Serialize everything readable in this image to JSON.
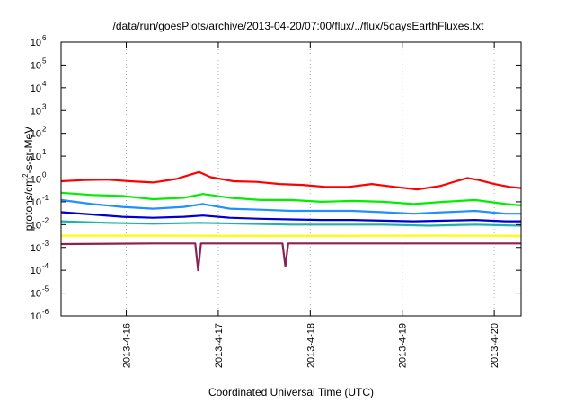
{
  "chart_data": {
    "type": "line",
    "title": "/data/run/goesPlots/archive/2013-04-20/07:00/flux/../flux/5daysEarthFluxes.txt",
    "xlabel": "Coordinated Universal Time (UTC)",
    "ylabel": {
      "base": "protons/cm",
      "sup": "2",
      "rest": "-s-sr-MeV"
    },
    "yscale": "log",
    "ylim": [
      1e-06,
      1000000.0
    ],
    "y_ticks": [
      {
        "value": 1e-06,
        "base": "10",
        "exp": "-6"
      },
      {
        "value": 1e-05,
        "base": "10",
        "exp": "-5"
      },
      {
        "value": 0.0001,
        "base": "10",
        "exp": "-4"
      },
      {
        "value": 0.001,
        "base": "10",
        "exp": "-3"
      },
      {
        "value": 0.01,
        "base": "10",
        "exp": "-2"
      },
      {
        "value": 0.1,
        "base": "10",
        "exp": "-1"
      },
      {
        "value": 1,
        "base": "10",
        "exp": "0"
      },
      {
        "value": 10,
        "base": "10",
        "exp": "1"
      },
      {
        "value": 100,
        "base": "10",
        "exp": "2"
      },
      {
        "value": 1000,
        "base": "10",
        "exp": "3"
      },
      {
        "value": 10000,
        "base": "10",
        "exp": "4"
      },
      {
        "value": 100000,
        "base": "10",
        "exp": "5"
      },
      {
        "value": 1000000,
        "base": "10",
        "exp": "6"
      }
    ],
    "xlim": [
      "2013-04-15 07:00",
      "2013-04-20 07:00"
    ],
    "x_ticks": [
      {
        "value": "2013-04-16 00:00",
        "label": "2013-4-16"
      },
      {
        "value": "2013-04-17 00:00",
        "label": "2013-4-17"
      },
      {
        "value": "2013-04-18 00:00",
        "label": "2013-4-18"
      },
      {
        "value": "2013-04-19 00:00",
        "label": "2013-4-19"
      },
      {
        "value": "2013-04-20 00:00",
        "label": "2013-4-20"
      }
    ],
    "grid": true,
    "series": [
      {
        "color": "#ff0000",
        "values": [
          {
            "x": "2013-04-15 07:00",
            "y": 0.8
          },
          {
            "x": "2013-04-15 13:00",
            "y": 0.9
          },
          {
            "x": "2013-04-15 19:00",
            "y": 0.95
          },
          {
            "x": "2013-04-16 01:00",
            "y": 0.8
          },
          {
            "x": "2013-04-16 07:00",
            "y": 0.7
          },
          {
            "x": "2013-04-16 13:00",
            "y": 1.0
          },
          {
            "x": "2013-04-16 17:00",
            "y": 1.6
          },
          {
            "x": "2013-04-16 19:00",
            "y": 2.0
          },
          {
            "x": "2013-04-16 22:00",
            "y": 1.2
          },
          {
            "x": "2013-04-17 04:00",
            "y": 0.8
          },
          {
            "x": "2013-04-17 10:00",
            "y": 0.75
          },
          {
            "x": "2013-04-17 16:00",
            "y": 0.6
          },
          {
            "x": "2013-04-17 22:00",
            "y": 0.55
          },
          {
            "x": "2013-04-18 04:00",
            "y": 0.45
          },
          {
            "x": "2013-04-18 10:00",
            "y": 0.45
          },
          {
            "x": "2013-04-18 16:00",
            "y": 0.6
          },
          {
            "x": "2013-04-18 22:00",
            "y": 0.45
          },
          {
            "x": "2013-04-19 04:00",
            "y": 0.35
          },
          {
            "x": "2013-04-19 10:00",
            "y": 0.5
          },
          {
            "x": "2013-04-19 14:00",
            "y": 0.8
          },
          {
            "x": "2013-04-19 17:00",
            "y": 1.1
          },
          {
            "x": "2013-04-19 20:00",
            "y": 0.9
          },
          {
            "x": "2013-04-20 00:00",
            "y": 0.6
          },
          {
            "x": "2013-04-20 04:00",
            "y": 0.45
          },
          {
            "x": "2013-04-20 07:00",
            "y": 0.4
          }
        ]
      },
      {
        "color": "#00ee00",
        "values": [
          {
            "x": "2013-04-15 07:00",
            "y": 0.25
          },
          {
            "x": "2013-04-15 15:00",
            "y": 0.2
          },
          {
            "x": "2013-04-15 23:00",
            "y": 0.18
          },
          {
            "x": "2013-04-16 07:00",
            "y": 0.13
          },
          {
            "x": "2013-04-16 15:00",
            "y": 0.15
          },
          {
            "x": "2013-04-16 20:00",
            "y": 0.22
          },
          {
            "x": "2013-04-17 03:00",
            "y": 0.15
          },
          {
            "x": "2013-04-17 11:00",
            "y": 0.12
          },
          {
            "x": "2013-04-17 19:00",
            "y": 0.12
          },
          {
            "x": "2013-04-18 03:00",
            "y": 0.1
          },
          {
            "x": "2013-04-18 11:00",
            "y": 0.11
          },
          {
            "x": "2013-04-18 19:00",
            "y": 0.1
          },
          {
            "x": "2013-04-19 03:00",
            "y": 0.08
          },
          {
            "x": "2013-04-19 11:00",
            "y": 0.1
          },
          {
            "x": "2013-04-19 19:00",
            "y": 0.12
          },
          {
            "x": "2013-04-20 03:00",
            "y": 0.08
          },
          {
            "x": "2013-04-20 07:00",
            "y": 0.07
          }
        ]
      },
      {
        "color": "#1e90ff",
        "values": [
          {
            "x": "2013-04-15 07:00",
            "y": 0.12
          },
          {
            "x": "2013-04-15 15:00",
            "y": 0.08
          },
          {
            "x": "2013-04-15 23:00",
            "y": 0.06
          },
          {
            "x": "2013-04-16 07:00",
            "y": 0.05
          },
          {
            "x": "2013-04-16 15:00",
            "y": 0.06
          },
          {
            "x": "2013-04-16 20:00",
            "y": 0.08
          },
          {
            "x": "2013-04-17 03:00",
            "y": 0.05
          },
          {
            "x": "2013-04-17 11:00",
            "y": 0.045
          },
          {
            "x": "2013-04-17 19:00",
            "y": 0.04
          },
          {
            "x": "2013-04-18 03:00",
            "y": 0.04
          },
          {
            "x": "2013-04-18 11:00",
            "y": 0.04
          },
          {
            "x": "2013-04-18 19:00",
            "y": 0.035
          },
          {
            "x": "2013-04-19 03:00",
            "y": 0.03
          },
          {
            "x": "2013-04-19 11:00",
            "y": 0.035
          },
          {
            "x": "2013-04-19 19:00",
            "y": 0.04
          },
          {
            "x": "2013-04-20 03:00",
            "y": 0.03
          },
          {
            "x": "2013-04-20 07:00",
            "y": 0.03
          }
        ]
      },
      {
        "color": "#0000cd",
        "values": [
          {
            "x": "2013-04-15 07:00",
            "y": 0.035
          },
          {
            "x": "2013-04-15 15:00",
            "y": 0.028
          },
          {
            "x": "2013-04-15 23:00",
            "y": 0.022
          },
          {
            "x": "2013-04-16 07:00",
            "y": 0.02
          },
          {
            "x": "2013-04-16 15:00",
            "y": 0.022
          },
          {
            "x": "2013-04-16 20:00",
            "y": 0.025
          },
          {
            "x": "2013-04-17 03:00",
            "y": 0.02
          },
          {
            "x": "2013-04-17 11:00",
            "y": 0.018
          },
          {
            "x": "2013-04-17 19:00",
            "y": 0.017
          },
          {
            "x": "2013-04-18 03:00",
            "y": 0.016
          },
          {
            "x": "2013-04-18 11:00",
            "y": 0.016
          },
          {
            "x": "2013-04-18 19:00",
            "y": 0.015
          },
          {
            "x": "2013-04-19 03:00",
            "y": 0.014
          },
          {
            "x": "2013-04-19 11:00",
            "y": 0.015
          },
          {
            "x": "2013-04-19 19:00",
            "y": 0.016
          },
          {
            "x": "2013-04-20 03:00",
            "y": 0.014
          },
          {
            "x": "2013-04-20 07:00",
            "y": 0.014
          }
        ]
      },
      {
        "color": "#20b2aa",
        "values": [
          {
            "x": "2013-04-15 07:00",
            "y": 0.014
          },
          {
            "x": "2013-04-15 19:00",
            "y": 0.012
          },
          {
            "x": "2013-04-16 07:00",
            "y": 0.011
          },
          {
            "x": "2013-04-16 19:00",
            "y": 0.012
          },
          {
            "x": "2013-04-17 07:00",
            "y": 0.011
          },
          {
            "x": "2013-04-17 19:00",
            "y": 0.01
          },
          {
            "x": "2013-04-18 07:00",
            "y": 0.01
          },
          {
            "x": "2013-04-18 19:00",
            "y": 0.01
          },
          {
            "x": "2013-04-19 07:00",
            "y": 0.009
          },
          {
            "x": "2013-04-19 19:00",
            "y": 0.01
          },
          {
            "x": "2013-04-20 07:00",
            "y": 0.009
          }
        ]
      },
      {
        "color": "#ffff00",
        "values": [
          {
            "x": "2013-04-15 07:00",
            "y": 0.0033
          },
          {
            "x": "2013-04-16 07:00",
            "y": 0.0033
          },
          {
            "x": "2013-04-17 07:00",
            "y": 0.0032
          },
          {
            "x": "2013-04-18 07:00",
            "y": 0.0032
          },
          {
            "x": "2013-04-19 07:00",
            "y": 0.0033
          },
          {
            "x": "2013-04-20 07:00",
            "y": 0.0032
          }
        ]
      },
      {
        "color": "#8b2252",
        "values": [
          {
            "x": "2013-04-15 07:00",
            "y": 0.0014
          },
          {
            "x": "2013-04-16 07:00",
            "y": 0.0015
          },
          {
            "x": "2013-04-16 18:00",
            "y": 0.0015
          },
          {
            "x": "2013-04-16 18:45",
            "y": 0.0001
          },
          {
            "x": "2013-04-16 19:30",
            "y": 0.0015
          },
          {
            "x": "2013-04-17 07:00",
            "y": 0.0015
          },
          {
            "x": "2013-04-17 16:45",
            "y": 0.0015
          },
          {
            "x": "2013-04-17 17:30",
            "y": 0.00015
          },
          {
            "x": "2013-04-17 18:15",
            "y": 0.0015
          },
          {
            "x": "2013-04-18 07:00",
            "y": 0.0015
          },
          {
            "x": "2013-04-19 07:00",
            "y": 0.0015
          },
          {
            "x": "2013-04-20 07:00",
            "y": 0.0015
          }
        ]
      }
    ]
  }
}
